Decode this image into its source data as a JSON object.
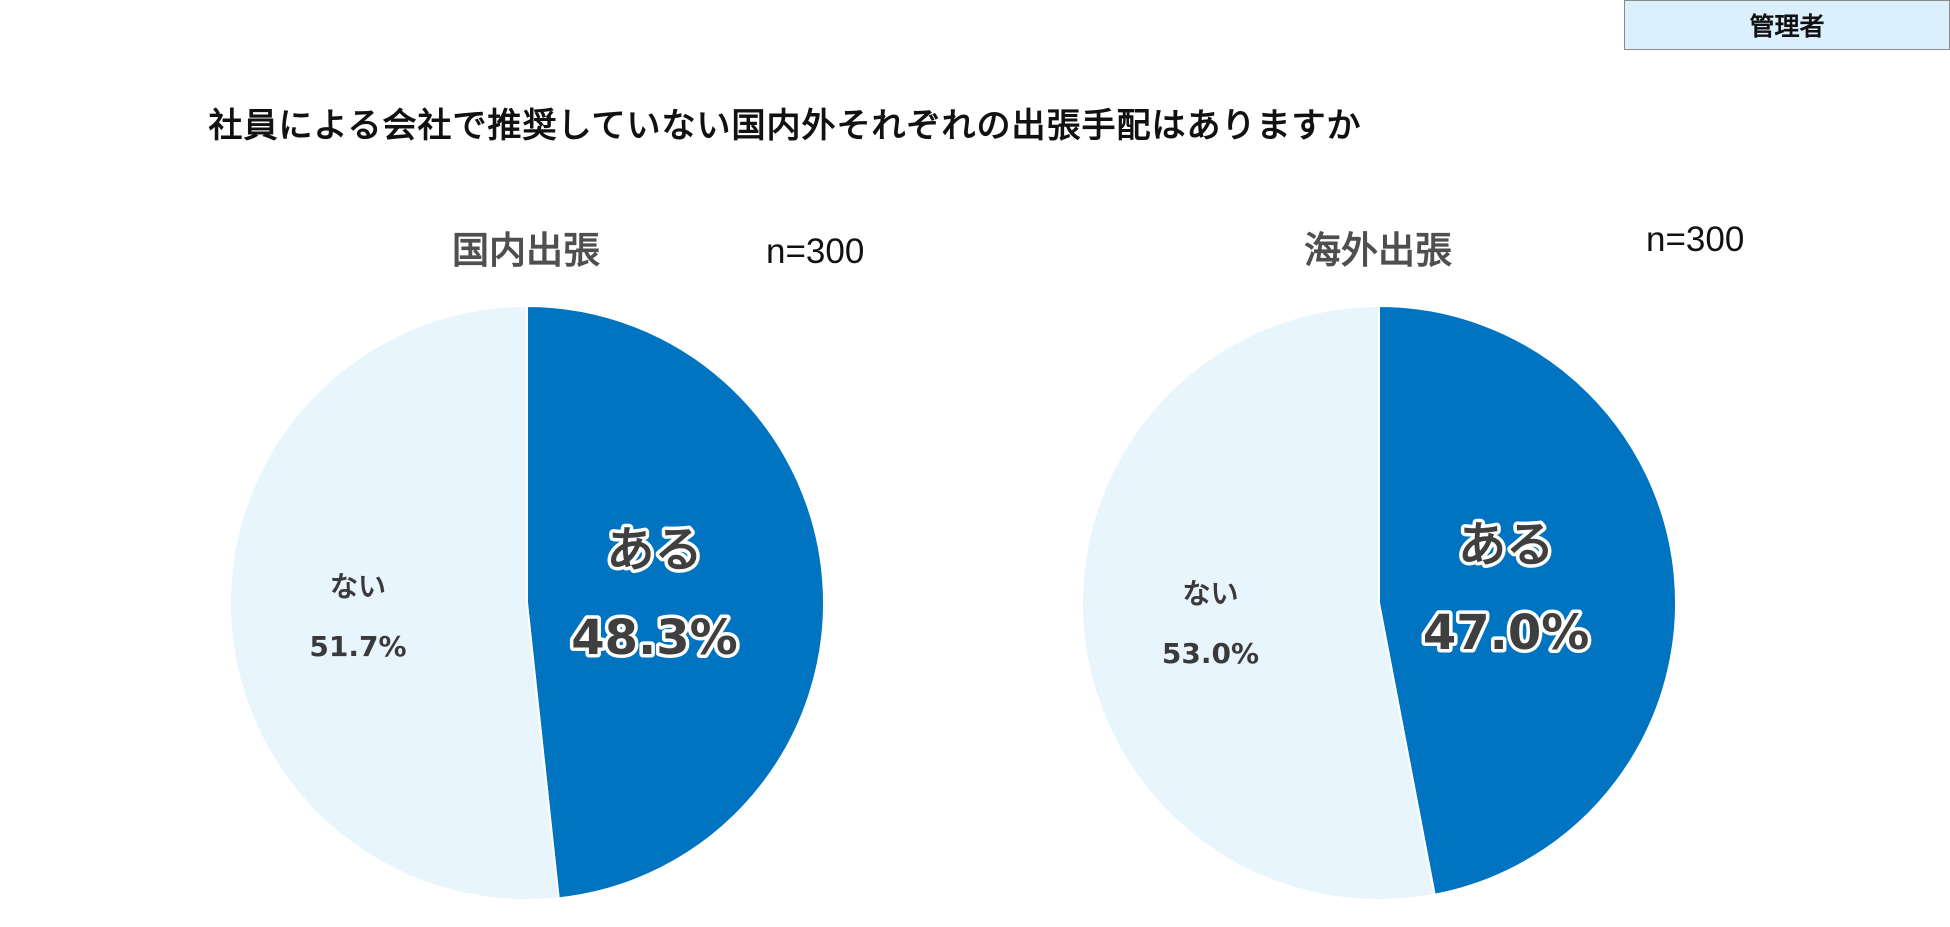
{
  "badge": "管理者",
  "main_title": "社員による会社で推奨していない国内外それぞれの出張手配はありますか",
  "colors": {
    "aru": "#0074c1",
    "nai": "#e8f5fd"
  },
  "chart_data": [
    {
      "type": "pie",
      "title": "国内出張",
      "n": "n=300",
      "slices": [
        {
          "label": "ある",
          "value": 48.3,
          "display": "48.3%"
        },
        {
          "label": "ない",
          "value": 51.7,
          "display": "51.7%"
        }
      ]
    },
    {
      "type": "pie",
      "title": "海外出張",
      "n": "n=300",
      "slices": [
        {
          "label": "ある",
          "value": 47.0,
          "display": "47.0%"
        },
        {
          "label": "ない",
          "value": 53.0,
          "display": "53.0%"
        }
      ]
    }
  ]
}
